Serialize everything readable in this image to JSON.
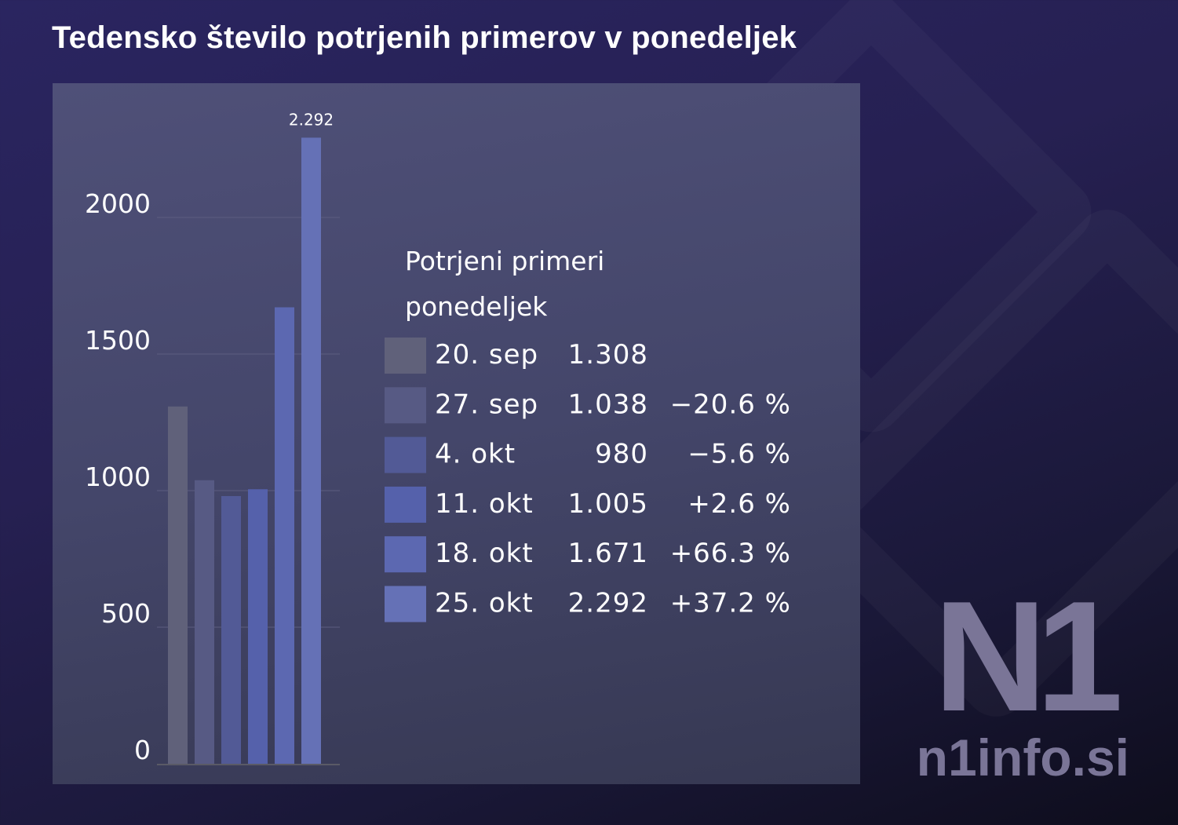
{
  "title": "Tedensko število potrjenih primerov v ponedeljek",
  "watermark": {
    "logo": "N1",
    "url": "n1info.si"
  },
  "chart_data": {
    "type": "bar",
    "title": "Tedensko število potrjenih primerov v ponedeljek",
    "categories": [
      "20. sep",
      "27. sep",
      "4. okt",
      "11. okt",
      "18. okt",
      "25. okt"
    ],
    "values": [
      1308,
      1038,
      980,
      1005,
      1671,
      2292
    ],
    "colors": [
      "#60617a",
      "#575a84",
      "#525a96",
      "#5561ab",
      "#5c68b1",
      "#6571b6"
    ],
    "ylim": [
      0,
      2292
    ],
    "yticks": [
      0,
      500,
      1000,
      1500,
      2000
    ],
    "ytick_labels": [
      "0",
      "500",
      "1000",
      "1500",
      "2000"
    ],
    "grid": true,
    "data_labels": [
      {
        "index": 5,
        "text": "2.292"
      }
    ],
    "legend": {
      "title": "Potrjeni primeri",
      "subtitle": "ponedeljek",
      "placement": "right",
      "rows": [
        {
          "label": "20. sep",
          "value": "1.308",
          "change": ""
        },
        {
          "label": "27. sep",
          "value": "1.038",
          "change": "−20.6 %"
        },
        {
          "label": "4. okt",
          "value": "980",
          "change": "−5.6 %"
        },
        {
          "label": "11. okt",
          "value": "1.005",
          "change": "+2.6 %"
        },
        {
          "label": "18. okt",
          "value": "1.671",
          "change": "+66.3 %"
        },
        {
          "label": "25. okt",
          "value": "2.292",
          "change": "+37.2 %"
        }
      ]
    }
  }
}
